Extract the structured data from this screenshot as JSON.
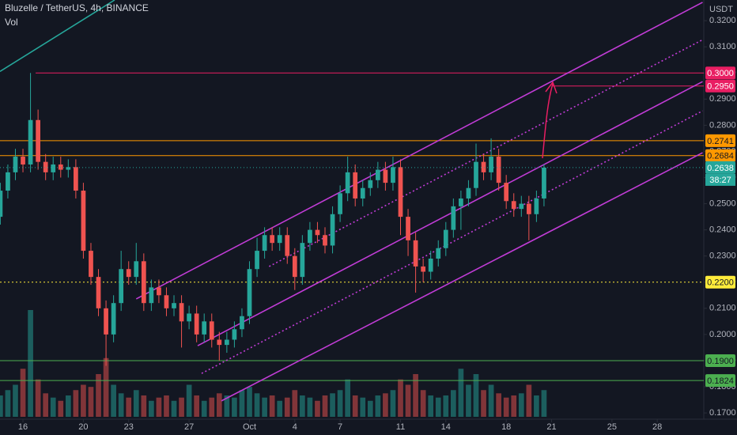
{
  "chart_data": {
    "type": "candlestick",
    "title": "Bluzelle / TetherUS, 4h, BINANCE",
    "volume_label": "Vol",
    "y_axis_label": "USDT",
    "up_color": "#26a69a",
    "down_color": "#ef5350",
    "x": [
      -1.5,
      -1,
      -0.5,
      0,
      0.5,
      1,
      1.5,
      2,
      2.5,
      3,
      3.5,
      4,
      4.5,
      5,
      5.5,
      6,
      6.5,
      7,
      7.5,
      8,
      8.5,
      9,
      9.5,
      10,
      10.5,
      11,
      11.5,
      12,
      12.5,
      13,
      13.5,
      14,
      14.5,
      15,
      15.5,
      16,
      16.5,
      17,
      17.5,
      18,
      18.5,
      19,
      19.5,
      20,
      20.5,
      21,
      21.5,
      22,
      22.5,
      23,
      23.5,
      24,
      24.5,
      25,
      25.5,
      26,
      26.5,
      27,
      27.5,
      28,
      28.5,
      29,
      29.5,
      30,
      30.5,
      31,
      31.5,
      32,
      32.5,
      33,
      33.5,
      34,
      34.5
    ],
    "open": [
      0.245,
      0.255,
      0.262,
      0.268,
      0.265,
      0.282,
      0.266,
      0.262,
      0.265,
      0.263,
      0.264,
      0.255,
      0.232,
      0.222,
      0.21,
      0.2,
      0.212,
      0.225,
      0.222,
      0.228,
      0.212,
      0.218,
      0.215,
      0.21,
      0.212,
      0.205,
      0.208,
      0.2,
      0.205,
      0.198,
      0.196,
      0.198,
      0.202,
      0.207,
      0.225,
      0.232,
      0.238,
      0.235,
      0.238,
      0.23,
      0.222,
      0.235,
      0.24,
      0.238,
      0.234,
      0.246,
      0.254,
      0.262,
      0.252,
      0.256,
      0.259,
      0.263,
      0.258,
      0.264,
      0.245,
      0.236,
      0.226,
      0.224,
      0.229,
      0.233,
      0.24,
      0.249,
      0.252,
      0.256,
      0.266,
      0.262,
      0.268,
      0.258,
      0.251,
      0.248,
      0.25,
      0.246,
      0.252
    ],
    "high": [
      0.258,
      0.265,
      0.271,
      0.271,
      0.3,
      0.286,
      0.269,
      0.268,
      0.268,
      0.267,
      0.267,
      0.258,
      0.235,
      0.225,
      0.213,
      0.215,
      0.232,
      0.228,
      0.235,
      0.231,
      0.221,
      0.221,
      0.218,
      0.215,
      0.215,
      0.211,
      0.211,
      0.208,
      0.208,
      0.201,
      0.201,
      0.205,
      0.21,
      0.228,
      0.237,
      0.241,
      0.241,
      0.241,
      0.241,
      0.233,
      0.238,
      0.243,
      0.243,
      0.241,
      0.249,
      0.257,
      0.268,
      0.265,
      0.259,
      0.262,
      0.266,
      0.266,
      0.268,
      0.267,
      0.248,
      0.239,
      0.229,
      0.232,
      0.236,
      0.243,
      0.252,
      0.255,
      0.259,
      0.273,
      0.269,
      0.275,
      0.271,
      0.261,
      0.254,
      0.253,
      0.253,
      0.255,
      0.265
    ],
    "low": [
      0.242,
      0.252,
      0.259,
      0.262,
      0.262,
      0.263,
      0.259,
      0.259,
      0.26,
      0.26,
      0.252,
      0.229,
      0.219,
      0.207,
      0.188,
      0.197,
      0.209,
      0.219,
      0.219,
      0.209,
      0.209,
      0.212,
      0.207,
      0.207,
      0.195,
      0.202,
      0.197,
      0.197,
      0.195,
      0.19,
      0.193,
      0.195,
      0.199,
      0.204,
      0.222,
      0.229,
      0.232,
      0.232,
      0.227,
      0.217,
      0.219,
      0.232,
      0.235,
      0.231,
      0.231,
      0.243,
      0.251,
      0.249,
      0.249,
      0.253,
      0.256,
      0.255,
      0.255,
      0.238,
      0.23,
      0.216,
      0.22,
      0.221,
      0.226,
      0.23,
      0.237,
      0.24,
      0.249,
      0.253,
      0.259,
      0.259,
      0.255,
      0.248,
      0.245,
      0.245,
      0.236,
      0.243,
      0.249
    ],
    "close": [
      0.255,
      0.262,
      0.268,
      0.265,
      0.282,
      0.266,
      0.262,
      0.265,
      0.263,
      0.264,
      0.255,
      0.232,
      0.222,
      0.21,
      0.2,
      0.212,
      0.225,
      0.222,
      0.228,
      0.212,
      0.218,
      0.215,
      0.21,
      0.212,
      0.205,
      0.208,
      0.2,
      0.205,
      0.198,
      0.196,
      0.198,
      0.202,
      0.207,
      0.225,
      0.232,
      0.238,
      0.235,
      0.238,
      0.23,
      0.222,
      0.235,
      0.24,
      0.238,
      0.234,
      0.246,
      0.254,
      0.262,
      0.252,
      0.256,
      0.259,
      0.263,
      0.258,
      0.264,
      0.245,
      0.236,
      0.226,
      0.224,
      0.229,
      0.233,
      0.24,
      0.249,
      0.252,
      0.256,
      0.266,
      0.262,
      0.268,
      0.258,
      0.251,
      0.248,
      0.25,
      0.246,
      0.252,
      0.2638
    ],
    "volume": [
      20,
      25,
      30,
      45,
      100,
      35,
      22,
      18,
      15,
      20,
      25,
      30,
      28,
      40,
      55,
      30,
      22,
      18,
      25,
      20,
      15,
      18,
      20,
      15,
      18,
      30,
      20,
      15,
      18,
      22,
      20,
      18,
      25,
      28,
      22,
      18,
      20,
      15,
      18,
      25,
      20,
      18,
      15,
      20,
      22,
      25,
      35,
      20,
      18,
      15,
      20,
      22,
      25,
      35,
      30,
      40,
      25,
      20,
      18,
      20,
      25,
      45,
      30,
      40,
      25,
      30,
      22,
      18,
      20,
      22,
      30,
      20,
      25
    ],
    "xlim": [
      -1.52,
      45.08
    ],
    "ylim": [
      0.1676,
      0.3279
    ],
    "xticks": [
      {
        "value": 0,
        "label": "16"
      },
      {
        "value": 4,
        "label": "20"
      },
      {
        "value": 7,
        "label": "23"
      },
      {
        "value": 11,
        "label": "27"
      },
      {
        "value": 15,
        "label": "Oct"
      },
      {
        "value": 18,
        "label": "4"
      },
      {
        "value": 21,
        "label": "7"
      },
      {
        "value": 25,
        "label": "11"
      },
      {
        "value": 28,
        "label": "14"
      },
      {
        "value": 32,
        "label": "18"
      },
      {
        "value": 35,
        "label": "21"
      },
      {
        "value": 39,
        "label": "25"
      },
      {
        "value": 42,
        "label": "28"
      }
    ],
    "yticks": [
      {
        "value": 0.17,
        "label": "0.1700"
      },
      {
        "value": 0.18,
        "label": "0.1800"
      },
      {
        "value": 0.19,
        "label": "0.1900"
      },
      {
        "value": 0.2,
        "label": "0.2000"
      },
      {
        "value": 0.21,
        "label": "0.2100"
      },
      {
        "value": 0.22,
        "label": "0.2200"
      },
      {
        "value": 0.23,
        "label": "0.2300"
      },
      {
        "value": 0.24,
        "label": "0.2400"
      },
      {
        "value": 0.25,
        "label": "0.2500"
      },
      {
        "value": 0.26,
        "label": "0.2600"
      },
      {
        "value": 0.27,
        "label": "0.2700"
      },
      {
        "value": 0.28,
        "label": "0.2800"
      },
      {
        "value": 0.29,
        "label": "0.2900"
      },
      {
        "value": 0.3,
        "label": "0.3000"
      },
      {
        "value": 0.31,
        "label": "0.3100"
      },
      {
        "value": 0.32,
        "label": "0.3200"
      }
    ],
    "horizontal_lines": [
      {
        "value": 0.3,
        "label": "0.3000",
        "color": "#e91e63",
        "text_color": "#ffffff",
        "style": "solid",
        "x_start": 0.84
      },
      {
        "value": 0.295,
        "label": "0.2950",
        "color": "#e91e63",
        "text_color": "#ffffff",
        "style": "solid",
        "x_start": 35
      },
      {
        "value": 0.2741,
        "label": "0.2741",
        "color": "#ff9800",
        "text_color": "#131722",
        "style": "solid"
      },
      {
        "value": 0.2684,
        "label": "0.2684",
        "color": "#ff9800",
        "text_color": "#131722",
        "style": "solid"
      },
      {
        "value": 0.22,
        "label": "0.2200",
        "color": "#ffeb3b",
        "text_color": "#131722",
        "style": "dotted"
      },
      {
        "value": 0.19,
        "label": "0.1900",
        "color": "#4caf50",
        "text_color": "#131722",
        "style": "solid"
      },
      {
        "value": 0.1824,
        "label": "0.1824",
        "color": "#4caf50",
        "text_color": "#131722",
        "style": "solid"
      }
    ],
    "trend_lines": [
      {
        "x": [
          -1.52,
          6.07
        ],
        "y": [
          0.3006,
          0.3279
        ],
        "color": "#26a69a",
        "style": "solid"
      },
      {
        "x": [
          7.5,
          45
        ],
        "y": [
          0.2136,
          0.327
        ],
        "color": "#c13cd6",
        "style": "solid"
      },
      {
        "x": [
          16.3,
          45
        ],
        "y": [
          0.226,
          0.3127
        ],
        "color": "#c13cd6",
        "style": "dotted"
      },
      {
        "x": [
          11.57,
          45
        ],
        "y": [
          0.1957,
          0.2967
        ],
        "color": "#c13cd6",
        "style": "solid"
      },
      {
        "x": [
          11.83,
          45
        ],
        "y": [
          0.1851,
          0.2855
        ],
        "color": "#c13cd6",
        "style": "dotted"
      },
      {
        "x": [
          13.14,
          45
        ],
        "y": [
          0.1746,
          0.2695
        ],
        "color": "#c13cd6",
        "style": "solid"
      }
    ],
    "last_price": {
      "value": 0.2638,
      "label": "0.2638",
      "countdown": "38:27",
      "color": "#26a69a"
    }
  }
}
